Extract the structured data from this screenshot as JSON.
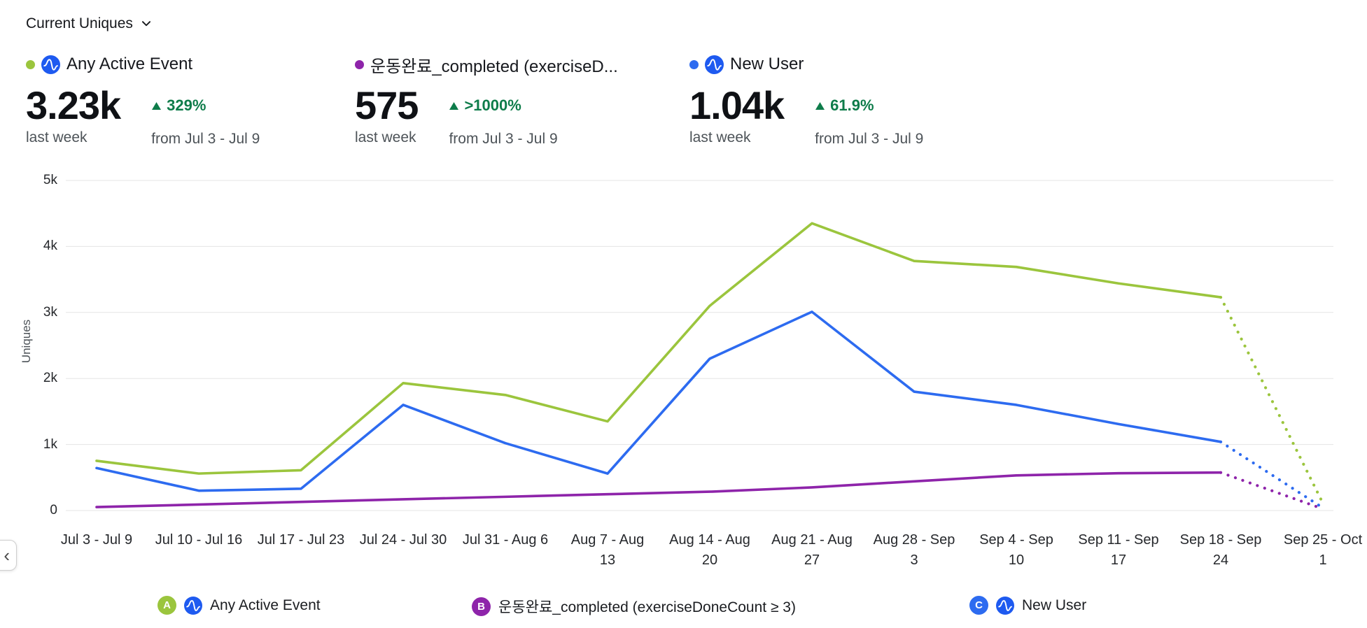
{
  "header": {
    "title": "Current Uniques"
  },
  "colors": {
    "positive": "#0e7c4a",
    "grid": "#e5e5e5",
    "logo_blue": "#1e5af0",
    "series_green": "#9bc53d",
    "series_purple": "#8e24aa",
    "series_blue": "#2d6bf0"
  },
  "metrics": [
    {
      "name": "Any Active Event",
      "dot_color": "#9bc53d",
      "has_logo": true,
      "value": "3.23k",
      "period": "last week",
      "delta": "329%",
      "delta_dir": "up",
      "compare": "from Jul 3 - Jul 9"
    },
    {
      "name": "운동완료_completed (exerciseD...",
      "dot_color": "#8e24aa",
      "has_logo": false,
      "value": "575",
      "period": "last week",
      "delta": ">1000%",
      "delta_dir": "up",
      "compare": "from Jul 3 - Jul 9"
    },
    {
      "name": "New User",
      "dot_color": "#2d6bf0",
      "has_logo": true,
      "value": "1.04k",
      "period": "last week",
      "delta": "61.9%",
      "delta_dir": "up",
      "compare": "from Jul 3 - Jul 9"
    }
  ],
  "chart_data": {
    "type": "line",
    "title": "Current Uniques",
    "xlabel": "",
    "ylabel": "Uniques",
    "ylim": [
      0,
      5000
    ],
    "grid": true,
    "legend_position": "bottom",
    "last_point_partial": true,
    "yticks": [
      {
        "value": 5000,
        "label": "5k"
      },
      {
        "value": 4000,
        "label": "4k"
      },
      {
        "value": 3000,
        "label": "3k"
      },
      {
        "value": 2000,
        "label": "2k"
      },
      {
        "value": 1000,
        "label": "1k"
      },
      {
        "value": 0,
        "label": "0"
      }
    ],
    "categories": [
      "Jul 3 - Jul 9",
      "Jul 10 - Jul 16",
      "Jul 17 - Jul 23",
      "Jul 24 - Jul 30",
      "Jul 31 - Aug 6",
      "Aug 7 - Aug 13",
      "Aug 14 - Aug 20",
      "Aug 21 - Aug 27",
      "Aug 28 - Sep 3",
      "Sep 4 - Sep 10",
      "Sep 11 - Sep 17",
      "Sep 18 - Sep 24",
      "Sep 25 - Oct 1"
    ],
    "series": [
      {
        "name": "Any Active Event",
        "letter": "A",
        "color": "#9bc53d",
        "values": [
          753,
          560,
          610,
          1930,
          1750,
          1350,
          3100,
          4350,
          3780,
          3690,
          3440,
          3230,
          110
        ]
      },
      {
        "name": "운동완료_completed (exerciseDoneCount ≥ 3)",
        "letter": "B",
        "color": "#8e24aa",
        "values": [
          52,
          91,
          130,
          170,
          208,
          247,
          285,
          350,
          442,
          532,
          565,
          575,
          25
        ]
      },
      {
        "name": "New User",
        "letter": "C",
        "color": "#2d6bf0",
        "values": [
          643,
          300,
          330,
          1600,
          1020,
          560,
          2300,
          3010,
          1800,
          1600,
          1310,
          1040,
          40
        ]
      }
    ]
  },
  "legend": [
    {
      "letter": "A",
      "color": "#9bc53d",
      "has_logo": true,
      "label": "Any Active Event"
    },
    {
      "letter": "B",
      "color": "#8e24aa",
      "has_logo": false,
      "label": "운동완료_completed (exerciseDoneCount ≥ 3)"
    },
    {
      "letter": "C",
      "color": "#2d6bf0",
      "has_logo": true,
      "label": "New User"
    }
  ],
  "pager": {
    "prev_label": "‹"
  }
}
